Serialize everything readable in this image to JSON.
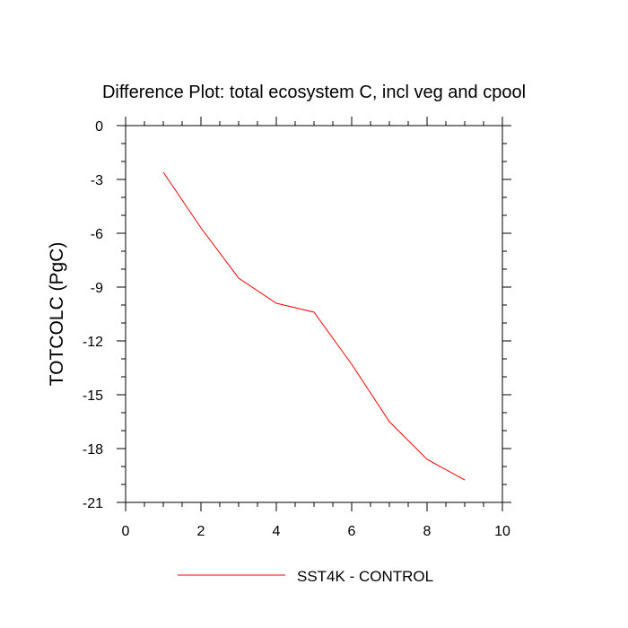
{
  "chart_data": {
    "type": "line",
    "title": "Difference Plot: total ecosystem C, incl veg and cpool",
    "xlabel": "",
    "ylabel": "TOTCOLC  (PgC)",
    "xlim": [
      0,
      10
    ],
    "ylim": [
      -21,
      0
    ],
    "x_ticks": [
      "0",
      "2",
      "4",
      "6",
      "8",
      "10"
    ],
    "y_ticks": [
      "0",
      "-3",
      "-6",
      "-9",
      "-12",
      "-15",
      "-18",
      "-21"
    ],
    "grid": false,
    "legend": "bottom-center",
    "series": [
      {
        "name": "SST4K - CONTROL",
        "color": "#ff0000",
        "x": [
          1,
          2,
          3,
          4,
          5,
          6,
          7,
          8,
          9
        ],
        "y": [
          -2.6,
          -5.7,
          -8.5,
          -9.9,
          -10.4,
          -13.3,
          -16.5,
          -18.6,
          -19.75
        ]
      }
    ]
  }
}
